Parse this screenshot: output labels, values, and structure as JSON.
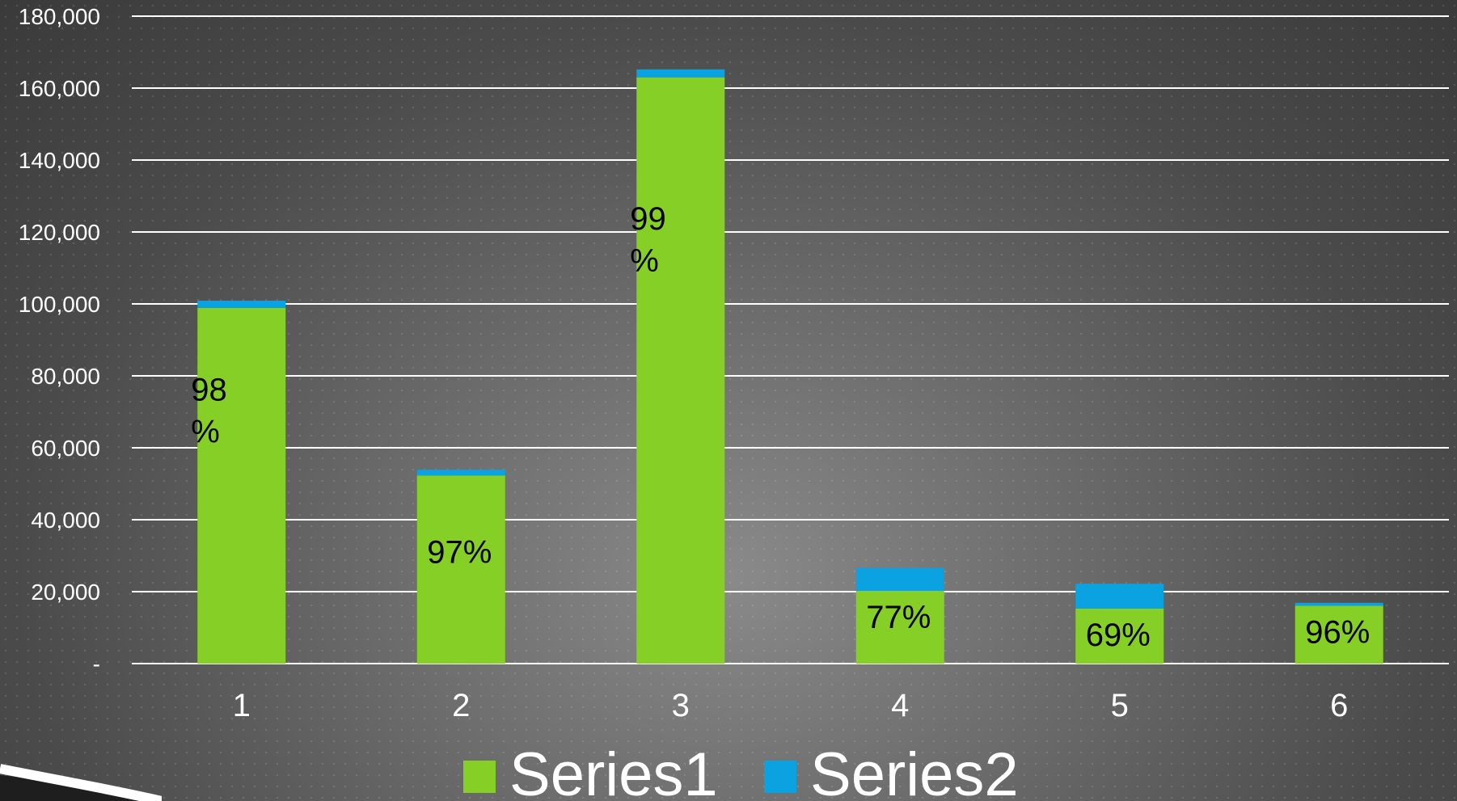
{
  "colors": {
    "series1": "#86cf26",
    "series2": "#0aa2e0",
    "gridline": "#ffffff",
    "text": "#ffffff",
    "data_label": "#000000"
  },
  "chart_data": {
    "type": "bar",
    "stacked": true,
    "categories": [
      "1",
      "2",
      "3",
      "4",
      "5",
      "6"
    ],
    "series": [
      {
        "name": "Series1",
        "values": [
          98900,
          52300,
          163000,
          20200,
          15300,
          16100
        ]
      },
      {
        "name": "Series2",
        "values": [
          2000,
          1600,
          2200,
          6400,
          6900,
          800
        ]
      }
    ],
    "data_labels": [
      "98\n%",
      "97%",
      "99\n%",
      "77%",
      "69%",
      "96%"
    ],
    "y_ticks": [
      {
        "value": 0,
        "label": "-"
      },
      {
        "value": 20000,
        "label": "20,000"
      },
      {
        "value": 40000,
        "label": "40,000"
      },
      {
        "value": 60000,
        "label": "60,000"
      },
      {
        "value": 80000,
        "label": "80,000"
      },
      {
        "value": 100000,
        "label": "100,000"
      },
      {
        "value": 120000,
        "label": "120,000"
      },
      {
        "value": 140000,
        "label": "140,000"
      },
      {
        "value": 160000,
        "label": "160,000"
      },
      {
        "value": 180000,
        "label": "180,000"
      }
    ],
    "ylim": [
      0,
      180000
    ],
    "grid": true,
    "legend_position": "bottom",
    "title": "",
    "xlabel": "",
    "ylabel": ""
  }
}
